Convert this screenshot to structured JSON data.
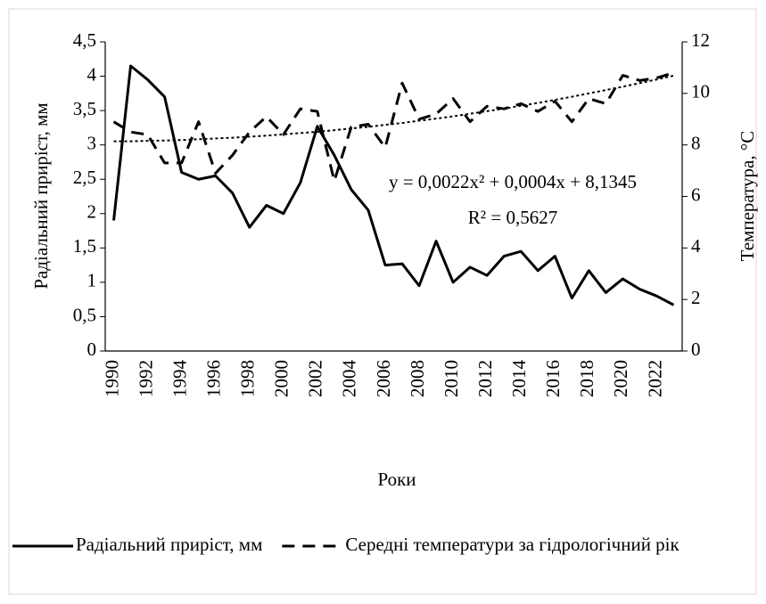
{
  "chart_data": {
    "type": "line",
    "categories": [
      "1990",
      null,
      "1992",
      null,
      "1994",
      null,
      "1996",
      null,
      "1998",
      null,
      "2000",
      null,
      "2002",
      null,
      "2004",
      null,
      "2006",
      null,
      "2008",
      null,
      "2010",
      null,
      "2012",
      null,
      "2014",
      null,
      "2016",
      null,
      "2018",
      null,
      "2020",
      null,
      "2022",
      null
    ],
    "series": [
      {
        "name": "Радіальний приріст, мм",
        "color": "#000000",
        "style": "solid",
        "values": [
          1.9,
          4.15,
          3.95,
          3.7,
          2.6,
          2.5,
          2.55,
          2.3,
          1.8,
          2.12,
          2.0,
          2.45,
          3.27,
          2.85,
          2.35,
          2.05,
          1.25,
          1.27,
          0.95,
          1.6,
          1.0,
          1.22,
          1.1,
          1.38,
          1.45,
          1.17,
          1.38,
          0.77,
          1.17,
          0.85,
          1.05,
          0.9,
          0.8,
          0.67
        ]
      },
      {
        "name": "Середні температури за гідрологічний рік",
        "color": "#000000",
        "style": "dashed",
        "axis": "y2",
        "values": [
          8.9,
          8.5,
          8.4,
          7.3,
          7.3,
          8.9,
          6.9,
          7.6,
          8.5,
          9.1,
          8.4,
          9.4,
          9.3,
          6.6,
          8.7,
          8.8,
          7.9,
          10.4,
          9.0,
          9.2,
          9.8,
          8.9,
          9.5,
          9.4,
          9.6,
          9.3,
          9.7,
          8.9,
          9.8,
          9.6,
          10.7,
          10.5,
          10.6,
          10.8
        ]
      }
    ],
    "trendline": {
      "axis": "y2",
      "style": "dotted",
      "values": [
        8.14,
        8.14,
        8.16,
        8.17,
        8.19,
        8.22,
        8.25,
        8.28,
        8.32,
        8.36,
        8.41,
        8.46,
        8.51,
        8.57,
        8.64,
        8.7,
        8.78,
        8.85,
        8.94,
        9.02,
        9.11,
        9.21,
        9.31,
        9.41,
        9.52,
        9.63,
        9.75,
        9.87,
        10.0,
        10.13,
        10.26,
        10.4,
        10.54,
        10.69
      ]
    },
    "ylim": [
      0,
      4.5
    ],
    "yticks": [
      0,
      {
        "value": 0.5,
        "label": "0,5"
      },
      1,
      {
        "value": 1.5,
        "label": "1,5"
      },
      2,
      {
        "value": 2.5,
        "label": "2,5"
      },
      3,
      {
        "value": 3.5,
        "label": "3,5"
      },
      4,
      {
        "value": 4.5,
        "label": "4,5"
      }
    ],
    "y2lim": [
      0,
      12
    ],
    "y2ticks": [
      0,
      2,
      4,
      6,
      8,
      10,
      12
    ],
    "ylabel": "Радіальний приріст, мм",
    "y2label": "Температура, °C",
    "xlabel": "Роки",
    "annotations": [
      "y = 0,0022x² + 0,0004x + 8,1345",
      "R² = 0,5627"
    ],
    "legend": "bottom"
  }
}
